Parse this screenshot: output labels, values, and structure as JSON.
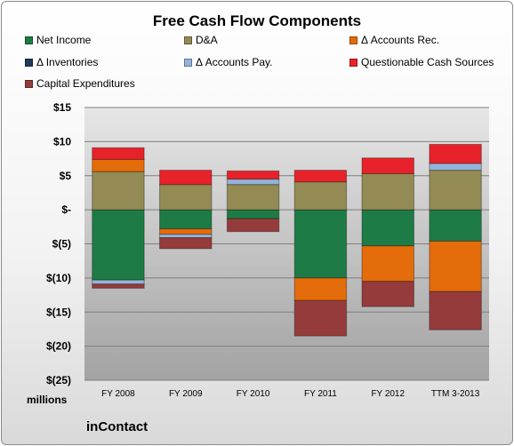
{
  "chart_data": {
    "type": "bar",
    "stacked": true,
    "title": "Free Cash Flow Components",
    "units_label": "millions",
    "brand": "inContact",
    "categories": [
      "FY 2008",
      "FY 2009",
      "FY 2010",
      "FY 2011",
      "FY 2012",
      "TTM 3-2013"
    ],
    "ylim": [
      -25,
      15
    ],
    "yticks": [
      {
        "value": 15,
        "label": "$15"
      },
      {
        "value": 10,
        "label": "$10"
      },
      {
        "value": 5,
        "label": "$5"
      },
      {
        "value": 0,
        "label": "$-"
      },
      {
        "value": -5,
        "label": "$(5)"
      },
      {
        "value": -10,
        "label": "$(10)"
      },
      {
        "value": -15,
        "label": "$(15)"
      },
      {
        "value": -20,
        "label": "$(20)"
      },
      {
        "value": -25,
        "label": "$(25)"
      }
    ],
    "grid": true,
    "legend_position": "top",
    "series": [
      {
        "name": "Net Income",
        "color": "#1e7b45",
        "values": [
          -10.3,
          -2.8,
          -1.3,
          -10.0,
          -5.3,
          -4.6
        ]
      },
      {
        "name": "D&A",
        "color": "#948a54",
        "values": [
          5.6,
          3.7,
          3.7,
          4.1,
          5.3,
          5.8
        ]
      },
      {
        "name": "Δ Accounts Rec.",
        "color": "#e46c0a",
        "values": [
          1.8,
          -0.8,
          0.0,
          -3.3,
          -5.2,
          -7.4
        ]
      },
      {
        "name": "Δ Inventories",
        "color": "#1f3a5a",
        "values": [
          0,
          0,
          0,
          0,
          0,
          0
        ]
      },
      {
        "name": "Δ Accounts Pay.",
        "color": "#95b3d7",
        "values": [
          -0.6,
          -0.5,
          0.8,
          0.0,
          0.0,
          1.0
        ]
      },
      {
        "name": "Questionable Cash Sources",
        "color": "#e8222a",
        "values": [
          1.7,
          2.1,
          1.2,
          1.7,
          2.3,
          2.8
        ]
      },
      {
        "name": "Capital Expenditures",
        "color": "#963b3b",
        "values": [
          -0.6,
          -1.6,
          -1.9,
          -5.2,
          -3.7,
          -5.6
        ]
      }
    ]
  }
}
